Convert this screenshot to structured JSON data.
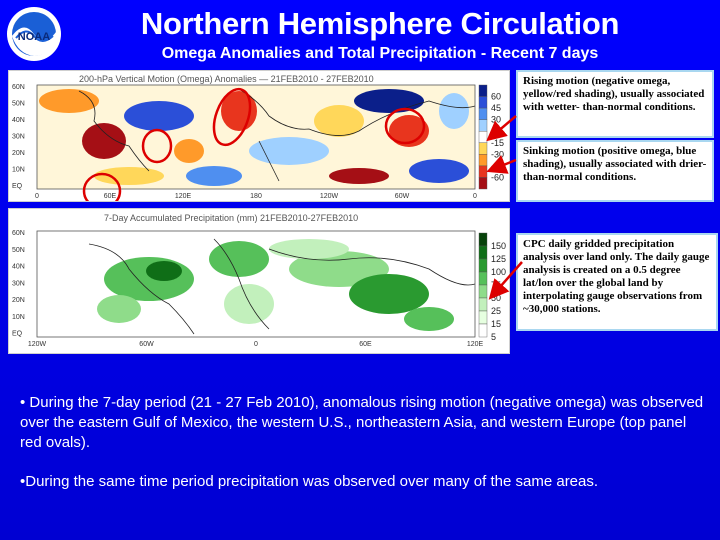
{
  "logo": {
    "text": "NOAA",
    "icon": "noaa-logo-icon"
  },
  "title": "Northern Hemisphere Circulation",
  "subtitle": "Omega Anomalies and Total Precipitation - Recent 7 days",
  "top_panel": {
    "map_title": "200-hPa Vertical Motion (Omega) Anomalies — 21FEB2010 - 27FEB2010",
    "lat_labels": [
      "60N",
      "50N",
      "40N",
      "30N",
      "20N",
      "10N",
      "EQ"
    ],
    "lon_labels": [
      "0",
      "60E",
      "120E",
      "180",
      "120W",
      "60W",
      "0"
    ],
    "colorbar_labels": [
      "60",
      "45",
      "30",
      "15",
      "-15",
      "-30",
      "-45",
      "-60"
    ],
    "colorbar_colors": [
      "#0b1f8a",
      "#2b4fd8",
      "#4f8ff0",
      "#9fd0ff",
      "#ffffff",
      "#ffd75a",
      "#ff9a2a",
      "#e8351e",
      "#a50f15"
    ],
    "highlight_color": "#dd0000"
  },
  "bottom_panel": {
    "map_title": "7-Day Accumulated Precipitation (mm)    21FEB2010-27FEB2010",
    "lat_labels": [
      "60N",
      "50N",
      "40N",
      "30N",
      "20N",
      "10N",
      "EQ"
    ],
    "lon_labels": [
      "120W",
      "60W",
      "0",
      "60E",
      "120E"
    ],
    "colorbar_labels": [
      "150",
      "125",
      "100",
      "75",
      "50",
      "25",
      "15",
      "5"
    ],
    "colorbar_colors": [
      "#07420a",
      "#0f6e17",
      "#2a9a30",
      "#56c05a",
      "#8fdc8a",
      "#c2f0bc",
      "#e6ffe0",
      "#ffffff"
    ]
  },
  "callouts": {
    "rising": "Rising motion (negative omega, yellow/red shading), usually associated with wetter- than-normal conditions.",
    "sinking": "Sinking motion (positive omega, blue shading), usually associated with drier-than-normal conditions.",
    "cpc": "CPC daily gridded precipitation analysis over land only. The daily gauge analysis is created on a 0.5 degree lat/lon over the global land by interpolating gauge observations from ~30,000 stations."
  },
  "bullets": [
    "• During the 7-day period (21 - 27 Feb 2010), anomalous rising motion (negative omega) was observed over the eastern Gulf of Mexico, the western U.S., northeastern Asia, and western Europe (top panel red ovals).",
    "•During the same time period precipitation was observed over many of the same areas."
  ],
  "colors": {
    "background": "#0000ff",
    "text": "#ffffff",
    "callout_border": "#a9d7f0",
    "arrow": "#dd0000"
  }
}
